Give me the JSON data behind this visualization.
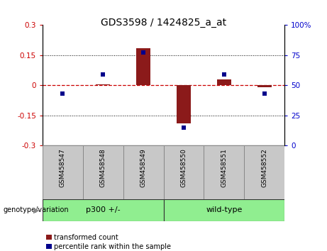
{
  "title": "GDS3598 / 1424825_a_at",
  "samples": [
    "GSM458547",
    "GSM458548",
    "GSM458549",
    "GSM458550",
    "GSM458551",
    "GSM458552"
  ],
  "red_bars": [
    0.0,
    0.005,
    0.185,
    -0.19,
    0.03,
    -0.01
  ],
  "blue_dots_left": [
    -0.04,
    0.055,
    0.165,
    -0.21,
    0.055,
    -0.04
  ],
  "ylim_left": [
    -0.3,
    0.3
  ],
  "ylim_right": [
    0,
    100
  ],
  "yticks_left": [
    -0.3,
    -0.15,
    0.0,
    0.15,
    0.3
  ],
  "yticks_right": [
    0,
    25,
    50,
    75,
    100
  ],
  "bar_color": "#8B1A1A",
  "dot_color": "#00008B",
  "zero_line_color": "#CC0000",
  "bg_color": "#FFFFFF",
  "plot_bg": "#FFFFFF",
  "title_fontsize": 10,
  "tick_label_color_left": "#CC0000",
  "tick_label_color_right": "#0000CC",
  "legend_red_label": "transformed count",
  "legend_blue_label": "percentile rank within the sample",
  "genotype_label": "genotype/variation",
  "group_labels": [
    "p300 +/-",
    "wild-type"
  ],
  "group_ranges": [
    [
      0,
      2
    ],
    [
      3,
      5
    ]
  ],
  "group_color": "#90EE90",
  "sample_box_color": "#C8C8C8",
  "sample_box_edge": "#888888"
}
